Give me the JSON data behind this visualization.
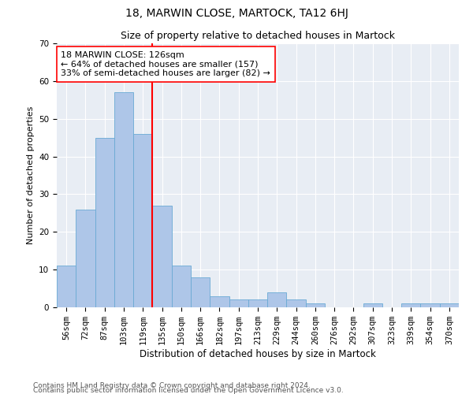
{
  "title": "18, MARWIN CLOSE, MARTOCK, TA12 6HJ",
  "subtitle": "Size of property relative to detached houses in Martock",
  "xlabel": "Distribution of detached houses by size in Martock",
  "ylabel": "Number of detached properties",
  "categories": [
    "56sqm",
    "72sqm",
    "87sqm",
    "103sqm",
    "119sqm",
    "135sqm",
    "150sqm",
    "166sqm",
    "182sqm",
    "197sqm",
    "213sqm",
    "229sqm",
    "244sqm",
    "260sqm",
    "276sqm",
    "292sqm",
    "307sqm",
    "323sqm",
    "339sqm",
    "354sqm",
    "370sqm"
  ],
  "values": [
    11,
    26,
    45,
    57,
    46,
    27,
    11,
    8,
    3,
    2,
    2,
    4,
    2,
    1,
    0,
    0,
    1,
    0,
    1,
    1,
    1
  ],
  "bar_color": "#aec6e8",
  "bar_edge_color": "#6aaad4",
  "vline_x": 4.5,
  "vline_color": "red",
  "annotation_text": "18 MARWIN CLOSE: 126sqm\n← 64% of detached houses are smaller (157)\n33% of semi-detached houses are larger (82) →",
  "annotation_box_color": "white",
  "annotation_box_edge_color": "red",
  "ylim": [
    0,
    70
  ],
  "yticks": [
    0,
    10,
    20,
    30,
    40,
    50,
    60,
    70
  ],
  "background_color": "#e8edf4",
  "footer_line1": "Contains HM Land Registry data © Crown copyright and database right 2024.",
  "footer_line2": "Contains public sector information licensed under the Open Government Licence v3.0.",
  "title_fontsize": 10,
  "subtitle_fontsize": 9,
  "xlabel_fontsize": 8.5,
  "ylabel_fontsize": 8,
  "tick_fontsize": 7.5,
  "annotation_fontsize": 8,
  "footer_fontsize": 6.5
}
